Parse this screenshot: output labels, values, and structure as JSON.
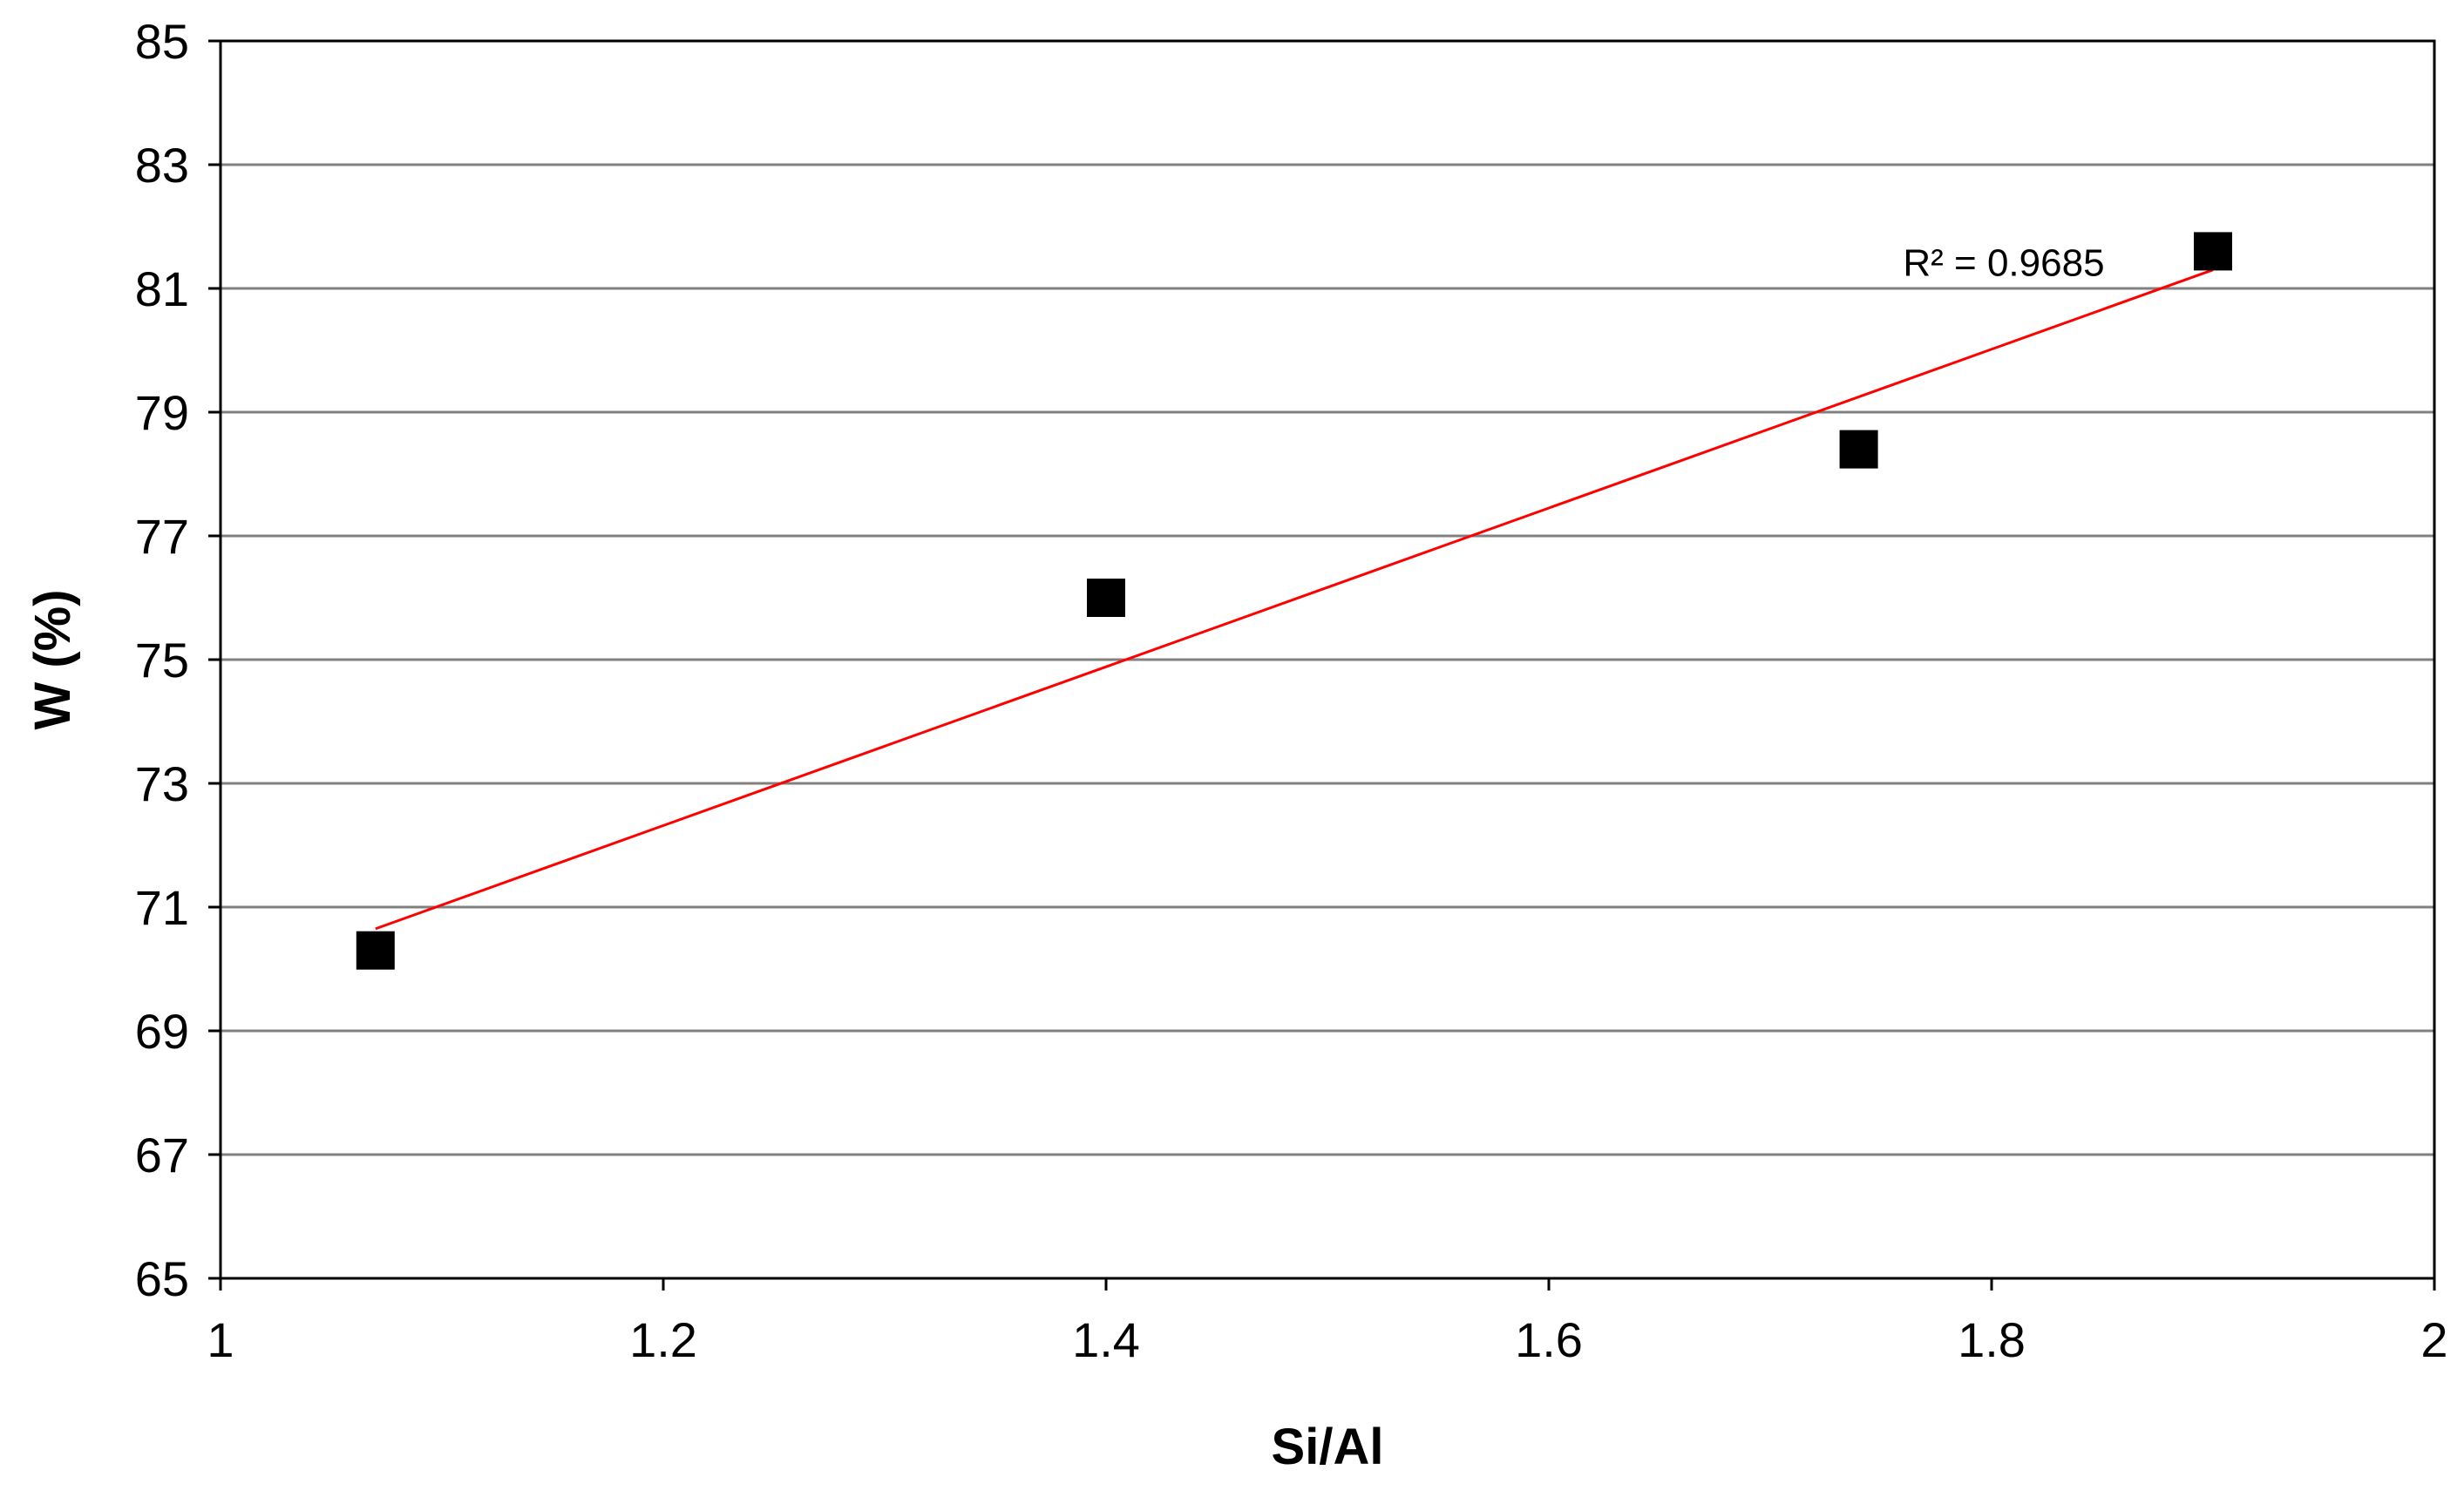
{
  "chart_data": {
    "type": "scatter",
    "title": "",
    "xlabel": "Si/Al",
    "ylabel": "W (%)",
    "xlim": [
      1,
      2
    ],
    "ylim": [
      65,
      85
    ],
    "x_ticks": [
      "1",
      "1.2",
      "1.4",
      "1.6",
      "1.8",
      "2"
    ],
    "y_ticks": [
      "65",
      "67",
      "69",
      "71",
      "73",
      "75",
      "77",
      "79",
      "81",
      "83",
      "85"
    ],
    "grid": "horizontal",
    "legend": "none",
    "points": [
      {
        "x": 1.07,
        "y": 70.3
      },
      {
        "x": 1.4,
        "y": 76.0
      },
      {
        "x": 1.74,
        "y": 78.4
      },
      {
        "x": 1.9,
        "y": 81.6
      }
    ],
    "trendline": {
      "type": "linear",
      "x": [
        1.07,
        1.9
      ],
      "y": [
        70.65,
        81.3
      ],
      "color": "#ff0000"
    },
    "annotation": {
      "text": "R² = 0.9685",
      "x": 1.76,
      "y": 81.4
    },
    "marker_color": "#000000",
    "grid_color": "#808080"
  }
}
